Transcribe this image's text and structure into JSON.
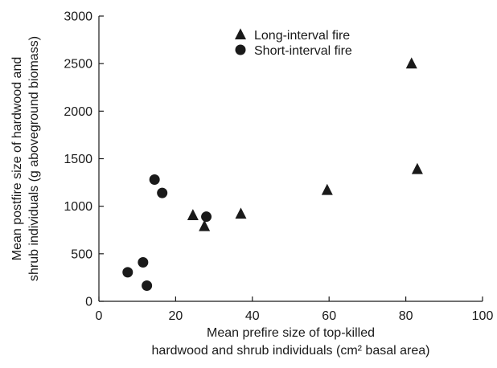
{
  "chart_data": {
    "type": "scatter",
    "xlabel": [
      "Mean prefire size of top-killed",
      "hardwood and shrub individuals (cm² basal area)"
    ],
    "ylabel": [
      "Mean postfire size of hardwood and",
      "shrub individuals (g aboveground biomass)"
    ],
    "xlim": [
      0,
      100
    ],
    "ylim": [
      0,
      3000
    ],
    "x_ticks": [
      0,
      20,
      40,
      60,
      80,
      100
    ],
    "y_ticks": [
      0,
      500,
      1000,
      1500,
      2000,
      2500,
      3000
    ],
    "legend_position": "top-center",
    "series": [
      {
        "name": "Long-interval fire",
        "marker": "triangle",
        "color": "#1a1a1a",
        "points": [
          {
            "x": 24.5,
            "y": 905
          },
          {
            "x": 27.5,
            "y": 790
          },
          {
            "x": 37.0,
            "y": 920
          },
          {
            "x": 59.5,
            "y": 1170
          },
          {
            "x": 81.5,
            "y": 2500
          },
          {
            "x": 83.0,
            "y": 1390
          }
        ]
      },
      {
        "name": "Short-interval fire",
        "marker": "circle",
        "color": "#1a1a1a",
        "points": [
          {
            "x": 7.5,
            "y": 305
          },
          {
            "x": 11.5,
            "y": 410
          },
          {
            "x": 12.5,
            "y": 165
          },
          {
            "x": 14.5,
            "y": 1280
          },
          {
            "x": 16.5,
            "y": 1140
          },
          {
            "x": 28.0,
            "y": 890
          }
        ]
      }
    ]
  }
}
